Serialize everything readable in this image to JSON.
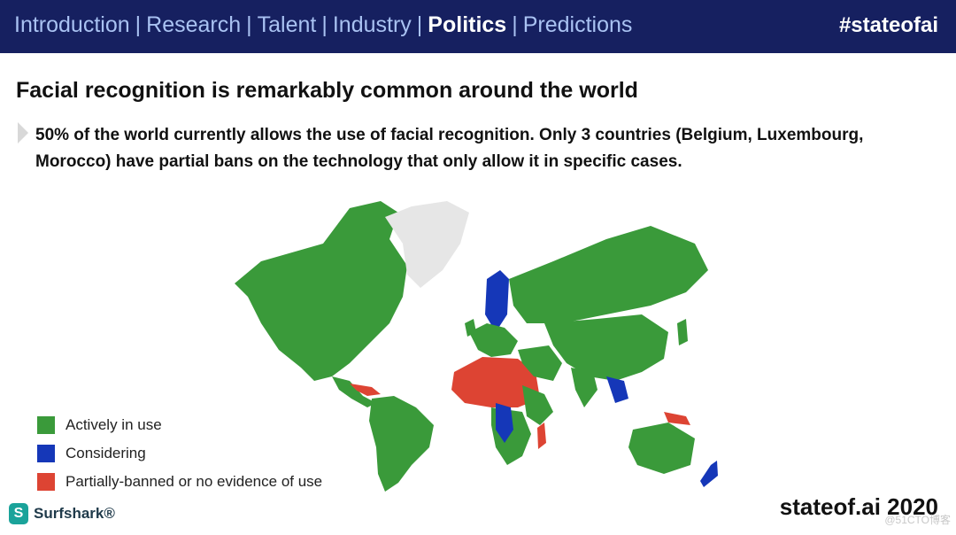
{
  "header": {
    "nav": [
      "Introduction",
      "Research",
      "Talent",
      "Industry",
      "Politics",
      "Predictions"
    ],
    "active": "Politics",
    "separator": "|",
    "hashtag": "#stateofai"
  },
  "slide": {
    "title": "Facial recognition is remarkably common around the world",
    "bullet": "50% of the world currently allows the use of facial recognition. Only 3 countries (Belgium, Luxembourg, Morocco) have partial bans on the technology that only allow it in specific cases."
  },
  "legend": [
    {
      "label": "Actively in use",
      "color": "#3a9a3a"
    },
    {
      "label": "Considering",
      "color": "#1537b8"
    },
    {
      "label": "Partially-banned or no evidence of use",
      "color": "#dd4433"
    }
  ],
  "colors": {
    "no_data": "#e6e6e6"
  },
  "logo": {
    "text": "Surfshark®",
    "icon": "surfshark-logo-icon"
  },
  "footer": "stateof.ai 2020",
  "watermark": "@51CTO博客"
}
